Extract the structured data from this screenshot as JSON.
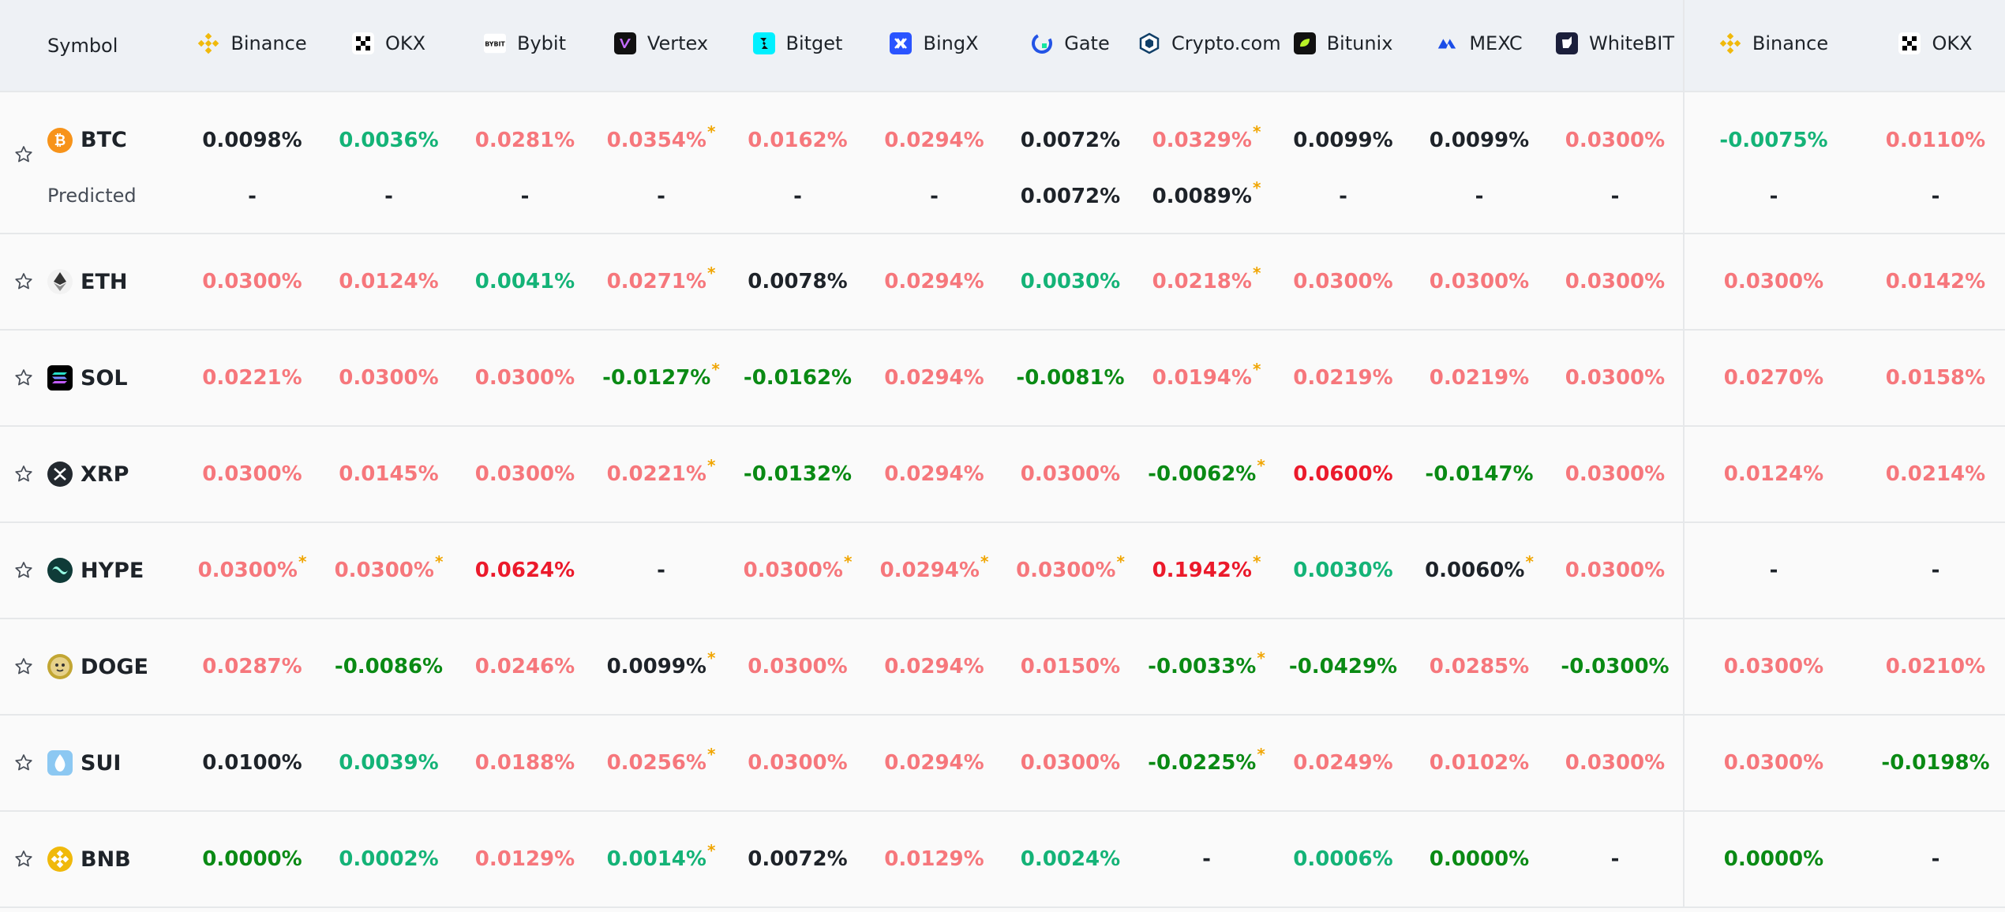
{
  "header": {
    "symbol_label": "Symbol",
    "exchanges": [
      {
        "name": "Binance",
        "icon": "binance-icon"
      },
      {
        "name": "OKX",
        "icon": "okx-icon"
      },
      {
        "name": "Bybit",
        "icon": "bybit-icon"
      },
      {
        "name": "Vertex",
        "icon": "vertex-icon"
      },
      {
        "name": "Bitget",
        "icon": "bitget-icon"
      },
      {
        "name": "BingX",
        "icon": "bingx-icon"
      },
      {
        "name": "Gate",
        "icon": "gate-icon"
      },
      {
        "name": "Crypto.com",
        "icon": "cryptocom-icon"
      },
      {
        "name": "Bitunix",
        "icon": "bitunix-icon"
      },
      {
        "name": "MEXC",
        "icon": "mexc-icon"
      },
      {
        "name": "WhiteBIT",
        "icon": "whitebit-icon"
      },
      {
        "name": "Binance",
        "icon": "binance-icon"
      },
      {
        "name": "OKX",
        "icon": "okx-icon"
      }
    ]
  },
  "colors": {
    "positive": "#f6777c",
    "positive_high": "#eb1a2b",
    "negative_light": "#14b377",
    "negative": "#0a8a14",
    "neutral": "#1e2329",
    "asterisk": "#f0a500"
  },
  "rows": [
    {
      "symbol": "BTC",
      "icon": "btc-coin-icon",
      "rates": [
        {
          "v": "0.0098%",
          "c": "black"
        },
        {
          "v": "0.0036%",
          "c": "green"
        },
        {
          "v": "0.0281%",
          "c": "red"
        },
        {
          "v": "0.0354%",
          "c": "red",
          "a": true
        },
        {
          "v": "0.0162%",
          "c": "red"
        },
        {
          "v": "0.0294%",
          "c": "red"
        },
        {
          "v": "0.0072%",
          "c": "black"
        },
        {
          "v": "0.0329%",
          "c": "red",
          "a": true
        },
        {
          "v": "0.0099%",
          "c": "black"
        },
        {
          "v": "0.0099%",
          "c": "black"
        },
        {
          "v": "0.0300%",
          "c": "red"
        },
        {
          "v": "-0.0075%",
          "c": "green"
        },
        {
          "v": "0.0110%",
          "c": "red"
        }
      ],
      "predicted_label": "Predicted",
      "predicted": [
        {
          "v": "-",
          "c": "black"
        },
        {
          "v": "-",
          "c": "black"
        },
        {
          "v": "-",
          "c": "black"
        },
        {
          "v": "-",
          "c": "black"
        },
        {
          "v": "-",
          "c": "black"
        },
        {
          "v": "-",
          "c": "black"
        },
        {
          "v": "0.0072%",
          "c": "black"
        },
        {
          "v": "0.0089%",
          "c": "black",
          "a": true
        },
        {
          "v": "-",
          "c": "black"
        },
        {
          "v": "-",
          "c": "black"
        },
        {
          "v": "-",
          "c": "black"
        },
        {
          "v": "-",
          "c": "black"
        },
        {
          "v": "-",
          "c": "black"
        }
      ]
    },
    {
      "symbol": "ETH",
      "icon": "eth-coin-icon",
      "rates": [
        {
          "v": "0.0300%",
          "c": "red"
        },
        {
          "v": "0.0124%",
          "c": "red"
        },
        {
          "v": "0.0041%",
          "c": "green"
        },
        {
          "v": "0.0271%",
          "c": "red",
          "a": true
        },
        {
          "v": "0.0078%",
          "c": "black"
        },
        {
          "v": "0.0294%",
          "c": "red"
        },
        {
          "v": "0.0030%",
          "c": "green"
        },
        {
          "v": "0.0218%",
          "c": "red",
          "a": true
        },
        {
          "v": "0.0300%",
          "c": "red"
        },
        {
          "v": "0.0300%",
          "c": "red"
        },
        {
          "v": "0.0300%",
          "c": "red"
        },
        {
          "v": "0.0300%",
          "c": "red"
        },
        {
          "v": "0.0142%",
          "c": "red"
        }
      ]
    },
    {
      "symbol": "SOL",
      "icon": "sol-coin-icon",
      "rates": [
        {
          "v": "0.0221%",
          "c": "red"
        },
        {
          "v": "0.0300%",
          "c": "red"
        },
        {
          "v": "0.0300%",
          "c": "red"
        },
        {
          "v": "-0.0127%",
          "c": "dgreen",
          "a": true
        },
        {
          "v": "-0.0162%",
          "c": "dgreen"
        },
        {
          "v": "0.0294%",
          "c": "red"
        },
        {
          "v": "-0.0081%",
          "c": "dgreen"
        },
        {
          "v": "0.0194%",
          "c": "red",
          "a": true
        },
        {
          "v": "0.0219%",
          "c": "red"
        },
        {
          "v": "0.0219%",
          "c": "red"
        },
        {
          "v": "0.0300%",
          "c": "red"
        },
        {
          "v": "0.0270%",
          "c": "red"
        },
        {
          "v": "0.0158%",
          "c": "red"
        }
      ]
    },
    {
      "symbol": "XRP",
      "icon": "xrp-coin-icon",
      "rates": [
        {
          "v": "0.0300%",
          "c": "red"
        },
        {
          "v": "0.0145%",
          "c": "red"
        },
        {
          "v": "0.0300%",
          "c": "red"
        },
        {
          "v": "0.0221%",
          "c": "red",
          "a": true
        },
        {
          "v": "-0.0132%",
          "c": "dgreen"
        },
        {
          "v": "0.0294%",
          "c": "red"
        },
        {
          "v": "0.0300%",
          "c": "red"
        },
        {
          "v": "-0.0062%",
          "c": "dgreen",
          "a": true
        },
        {
          "v": "0.0600%",
          "c": "redstrong"
        },
        {
          "v": "-0.0147%",
          "c": "dgreen"
        },
        {
          "v": "0.0300%",
          "c": "red"
        },
        {
          "v": "0.0124%",
          "c": "red"
        },
        {
          "v": "0.0214%",
          "c": "red"
        }
      ]
    },
    {
      "symbol": "HYPE",
      "icon": "hype-coin-icon",
      "rates": [
        {
          "v": "0.0300%",
          "c": "red",
          "a": true
        },
        {
          "v": "0.0300%",
          "c": "red",
          "a": true
        },
        {
          "v": "0.0624%",
          "c": "redstrong"
        },
        {
          "v": "-",
          "c": "black"
        },
        {
          "v": "0.0300%",
          "c": "red",
          "a": true
        },
        {
          "v": "0.0294%",
          "c": "red",
          "a": true
        },
        {
          "v": "0.0300%",
          "c": "red",
          "a": true
        },
        {
          "v": "0.1942%",
          "c": "redstrong",
          "a": true
        },
        {
          "v": "0.0030%",
          "c": "green"
        },
        {
          "v": "0.0060%",
          "c": "black",
          "a": true
        },
        {
          "v": "0.0300%",
          "c": "red"
        },
        {
          "v": "-",
          "c": "black"
        },
        {
          "v": "-",
          "c": "black"
        }
      ]
    },
    {
      "symbol": "DOGE",
      "icon": "doge-coin-icon",
      "rates": [
        {
          "v": "0.0287%",
          "c": "red"
        },
        {
          "v": "-0.0086%",
          "c": "dgreen"
        },
        {
          "v": "0.0246%",
          "c": "red"
        },
        {
          "v": "0.0099%",
          "c": "black",
          "a": true
        },
        {
          "v": "0.0300%",
          "c": "red"
        },
        {
          "v": "0.0294%",
          "c": "red"
        },
        {
          "v": "0.0150%",
          "c": "red"
        },
        {
          "v": "-0.0033%",
          "c": "dgreen",
          "a": true
        },
        {
          "v": "-0.0429%",
          "c": "dgreen"
        },
        {
          "v": "0.0285%",
          "c": "red"
        },
        {
          "v": "-0.0300%",
          "c": "dgreen"
        },
        {
          "v": "0.0300%",
          "c": "red"
        },
        {
          "v": "0.0210%",
          "c": "red"
        }
      ]
    },
    {
      "symbol": "SUI",
      "icon": "sui-coin-icon",
      "rates": [
        {
          "v": "0.0100%",
          "c": "black"
        },
        {
          "v": "0.0039%",
          "c": "green"
        },
        {
          "v": "0.0188%",
          "c": "red"
        },
        {
          "v": "0.0256%",
          "c": "red",
          "a": true
        },
        {
          "v": "0.0300%",
          "c": "red"
        },
        {
          "v": "0.0294%",
          "c": "red"
        },
        {
          "v": "0.0300%",
          "c": "red"
        },
        {
          "v": "-0.0225%",
          "c": "dgreen",
          "a": true
        },
        {
          "v": "0.0249%",
          "c": "red"
        },
        {
          "v": "0.0102%",
          "c": "red"
        },
        {
          "v": "0.0300%",
          "c": "red"
        },
        {
          "v": "0.0300%",
          "c": "red"
        },
        {
          "v": "-0.0198%",
          "c": "dgreen"
        }
      ]
    },
    {
      "symbol": "BNB",
      "icon": "bnb-coin-icon",
      "rates": [
        {
          "v": "0.0000%",
          "c": "dgreen"
        },
        {
          "v": "0.0002%",
          "c": "green"
        },
        {
          "v": "0.0129%",
          "c": "red"
        },
        {
          "v": "0.0014%",
          "c": "green",
          "a": true
        },
        {
          "v": "0.0072%",
          "c": "black"
        },
        {
          "v": "0.0129%",
          "c": "red"
        },
        {
          "v": "0.0024%",
          "c": "green"
        },
        {
          "v": "-",
          "c": "black"
        },
        {
          "v": "0.0006%",
          "c": "green"
        },
        {
          "v": "0.0000%",
          "c": "dgreen"
        },
        {
          "v": "-",
          "c": "black"
        },
        {
          "v": "0.0000%",
          "c": "dgreen"
        },
        {
          "v": "-",
          "c": "black"
        }
      ]
    }
  ]
}
